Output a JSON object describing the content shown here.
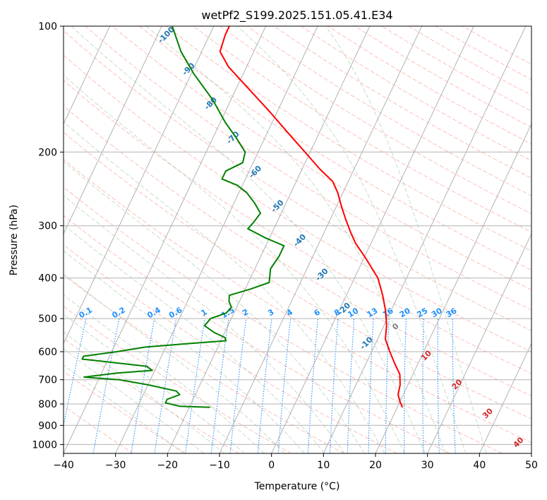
{
  "chart_data": {
    "type": "skew-t",
    "title": "wetPf2_S199.2025.151.05.41.E34",
    "xlabel": "Temperature (°C)",
    "ylabel": "Pressure (hPa)",
    "xlim": [
      -40,
      50
    ],
    "ylim": [
      1050,
      100
    ],
    "x_ticks": [
      -40,
      -30,
      -20,
      -10,
      0,
      10,
      20,
      30,
      40,
      50
    ],
    "y_ticks": [
      100,
      200,
      300,
      400,
      500,
      600,
      700,
      800,
      900,
      1000
    ],
    "grid": true,
    "series": [
      {
        "color": "#ff0000",
        "values": [
          {
            "p": 815,
            "t": 21.0
          },
          {
            "p": 790,
            "t": 20.0
          },
          {
            "p": 760,
            "t": 19.0
          },
          {
            "p": 720,
            "t": 18.5
          },
          {
            "p": 680,
            "t": 17.5
          },
          {
            "p": 640,
            "t": 15.5
          },
          {
            "p": 600,
            "t": 13.5
          },
          {
            "p": 560,
            "t": 11.5
          },
          {
            "p": 520,
            "t": 10.5
          },
          {
            "p": 480,
            "t": 9.0
          },
          {
            "p": 440,
            "t": 7.0
          },
          {
            "p": 400,
            "t": 4.5
          },
          {
            "p": 360,
            "t": 0.5
          },
          {
            "p": 330,
            "t": -3.0
          },
          {
            "p": 310,
            "t": -5.0
          },
          {
            "p": 290,
            "t": -7.0
          },
          {
            "p": 270,
            "t": -9.0
          },
          {
            "p": 250,
            "t": -11.0
          },
          {
            "p": 235,
            "t": -13.0
          },
          {
            "p": 220,
            "t": -16.5
          },
          {
            "p": 200,
            "t": -21.0
          },
          {
            "p": 180,
            "t": -26.0
          },
          {
            "p": 160,
            "t": -31.5
          },
          {
            "p": 140,
            "t": -38.0
          },
          {
            "p": 125,
            "t": -43.5
          },
          {
            "p": 115,
            "t": -46.5
          },
          {
            "p": 105,
            "t": -47.0
          },
          {
            "p": 100,
            "t": -47.0
          }
        ]
      },
      {
        "color": "#008000",
        "values": [
          {
            "p": 815,
            "t": -16.0
          },
          {
            "p": 810,
            "t": -22.0
          },
          {
            "p": 795,
            "t": -25.0
          },
          {
            "p": 780,
            "t": -25.0
          },
          {
            "p": 760,
            "t": -23.0
          },
          {
            "p": 745,
            "t": -24.0
          },
          {
            "p": 720,
            "t": -30.0
          },
          {
            "p": 700,
            "t": -36.0
          },
          {
            "p": 690,
            "t": -43.0
          },
          {
            "p": 675,
            "t": -37.0
          },
          {
            "p": 665,
            "t": -30.5
          },
          {
            "p": 650,
            "t": -32.0
          },
          {
            "p": 625,
            "t": -45.0
          },
          {
            "p": 615,
            "t": -45.0
          },
          {
            "p": 600,
            "t": -39.0
          },
          {
            "p": 585,
            "t": -34.0
          },
          {
            "p": 575,
            "t": -27.0
          },
          {
            "p": 565,
            "t": -19.0
          },
          {
            "p": 555,
            "t": -19.5
          },
          {
            "p": 540,
            "t": -22.0
          },
          {
            "p": 520,
            "t": -24.5
          },
          {
            "p": 500,
            "t": -24.0
          },
          {
            "p": 485,
            "t": -21.5
          },
          {
            "p": 470,
            "t": -21.0
          },
          {
            "p": 455,
            "t": -22.0
          },
          {
            "p": 440,
            "t": -22.5
          },
          {
            "p": 425,
            "t": -19.0
          },
          {
            "p": 410,
            "t": -16.0
          },
          {
            "p": 380,
            "t": -17.0
          },
          {
            "p": 355,
            "t": -16.5
          },
          {
            "p": 335,
            "t": -16.5
          },
          {
            "p": 320,
            "t": -21.0
          },
          {
            "p": 305,
            "t": -25.0
          },
          {
            "p": 295,
            "t": -24.5
          },
          {
            "p": 280,
            "t": -24.0
          },
          {
            "p": 265,
            "t": -26.0
          },
          {
            "p": 250,
            "t": -28.5
          },
          {
            "p": 240,
            "t": -31.0
          },
          {
            "p": 232,
            "t": -34.5
          },
          {
            "p": 222,
            "t": -34.5
          },
          {
            "p": 212,
            "t": -32.0
          },
          {
            "p": 200,
            "t": -32.5
          },
          {
            "p": 185,
            "t": -35.5
          },
          {
            "p": 170,
            "t": -39.0
          },
          {
            "p": 150,
            "t": -43.5
          },
          {
            "p": 130,
            "t": -49.5
          },
          {
            "p": 115,
            "t": -54.0
          },
          {
            "p": 100,
            "t": -58.0
          }
        ]
      }
    ],
    "isotherm_labels": [
      "-100",
      "-90",
      "-80",
      "-70",
      "-60",
      "-50",
      "-40",
      "-30",
      "-20",
      "-10",
      "0",
      "10",
      "20",
      "30",
      "40"
    ],
    "mixing_ratio_labels": [
      "0.1",
      "0.2",
      "0.4",
      "0.6",
      "1",
      "1.5",
      "2",
      "3",
      "4",
      "6",
      "8",
      "10",
      "13",
      "16",
      "20",
      "25",
      "30",
      "36"
    ],
    "colors": {
      "temperature": "#ff0000",
      "dewpoint": "#008000",
      "isotherm": "#b3b3b3",
      "dry_adiabat": "#fa8072",
      "moist_adiabat": "#8fbc8f",
      "mixing_ratio": "#1e90ff",
      "isotherm_label": "#1f77b4",
      "warm_isotherm_label": "#d62728",
      "zero_isotherm_label": "#808080"
    }
  }
}
